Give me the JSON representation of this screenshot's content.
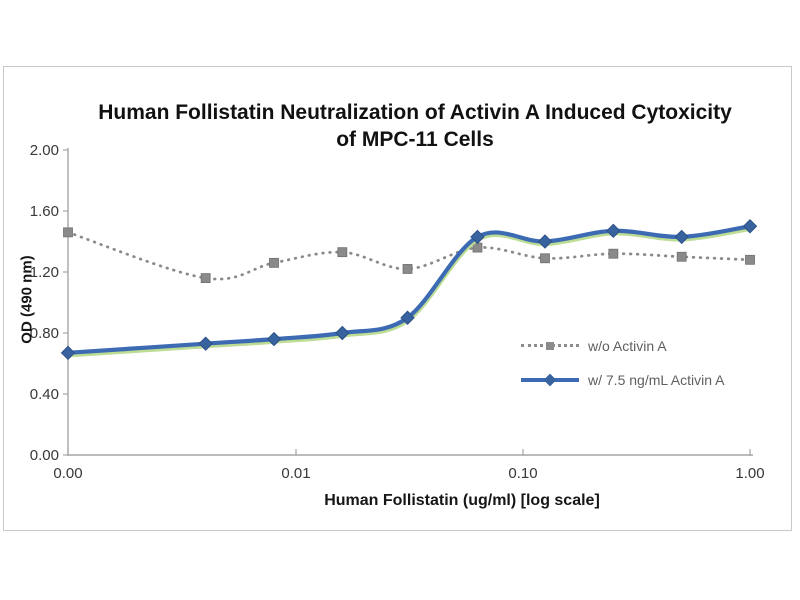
{
  "chart": {
    "panel_border_color": "#c9c9c9",
    "axis_color": "#a6a6a6",
    "title_color": "#111111",
    "legend_text_color": "#5f5f5f"
  },
  "chart_data": {
    "type": "line",
    "title": "Human Follistatin Neutralization of Activin A Induced Cytoxicity of MPC-11 Cells",
    "xlabel": "Human Follistatin (ug/ml) [log scale]",
    "ylabel": "OD (490 nm)",
    "x_scale": "log",
    "grid": false,
    "legend_position": "inside-right-middle",
    "x": [
      0,
      0.004,
      0.008,
      0.016,
      0.031,
      0.063,
      0.125,
      0.25,
      0.5,
      1.0
    ],
    "x_tick_values": [
      0,
      0.01,
      0.1,
      1.0
    ],
    "x_tick_labels": [
      "0.00",
      "0.01",
      "0.10",
      "1.00"
    ],
    "ylim": [
      0.0,
      2.0
    ],
    "y_tick_values": [
      2.0,
      1.6,
      1.2,
      0.8,
      0.4,
      0.0
    ],
    "y_tick_labels": [
      "2.00",
      "1.60",
      "1.20",
      "0.80",
      "0.40",
      "0.00"
    ],
    "series": [
      {
        "name": "w/o Activin A",
        "style": "dotted",
        "marker": "square",
        "color": "#8a8a8a",
        "marker_color": "#8a8a8a",
        "values": [
          1.46,
          1.16,
          1.26,
          1.33,
          1.22,
          1.36,
          1.29,
          1.32,
          1.3,
          1.28
        ]
      },
      {
        "name": "w/ 7.5 ng/mL Activin A",
        "style": "solid",
        "marker": "diamond",
        "color": "#3d6bb3",
        "marker_color": "#38639f",
        "glow_color": "#b9da8e",
        "values": [
          0.67,
          0.73,
          0.76,
          0.8,
          0.9,
          1.43,
          1.4,
          1.47,
          1.43,
          1.5
        ]
      }
    ]
  }
}
